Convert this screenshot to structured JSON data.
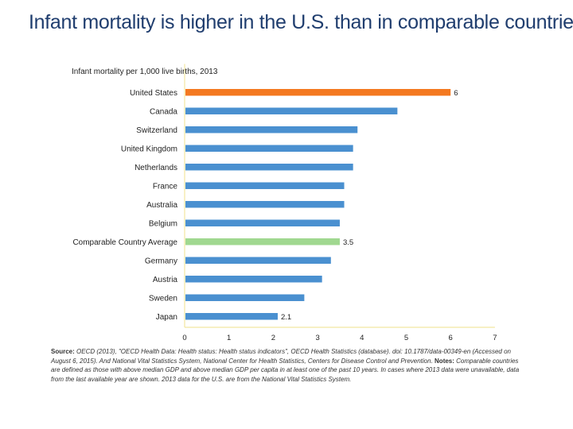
{
  "title": "Infant mortality is higher in the U.S. than in comparable countries",
  "chart_data": {
    "type": "bar",
    "orientation": "horizontal",
    "subtitle": "Infant mortality per 1,000 live births, 2013",
    "categories": [
      "United States",
      "Canada",
      "Switzerland",
      "United Kingdom",
      "Netherlands",
      "France",
      "Australia",
      "Belgium",
      "Comparable Country Average",
      "Germany",
      "Austria",
      "Sweden",
      "Japan"
    ],
    "values": [
      6.0,
      4.8,
      3.9,
      3.8,
      3.8,
      3.6,
      3.6,
      3.5,
      3.5,
      3.3,
      3.1,
      2.7,
      2.1
    ],
    "data_labels": [
      "6",
      "",
      "",
      "",
      "",
      "",
      "",
      "",
      "3.5",
      "",
      "",
      "",
      "2.1"
    ],
    "xlim": [
      0,
      7
    ],
    "xticks": [
      "0",
      "1",
      "2",
      "3",
      "4",
      "5",
      "6",
      "7"
    ],
    "colors": {
      "default": "#4a90d0",
      "highlight": "#f47920",
      "average": "#a0d890",
      "axis": "#f2e6a0"
    },
    "highlight_index": 0,
    "average_index": 8
  },
  "source": {
    "label_source": "Source:",
    "source_text": "OECD (2013), \"OECD Health Data: Health status: Health status indicators\", OECD Health Statistics (database). doi: 10.1787/data-00349-en (Accessed on August 6, 2015). And National Vital Statistics System, National Center for Health Statistics, Centers for Disease Control and Prevention.",
    "label_notes": "Notes:",
    "notes_text": "Comparable countries are defined as those with above median GDP and above median GDP per capita in at least one of the past 10 years. In cases where 2013 data were unavailable, data from the last available year are shown. 2013 data for the U.S. are from the National Vital Statistics System."
  }
}
